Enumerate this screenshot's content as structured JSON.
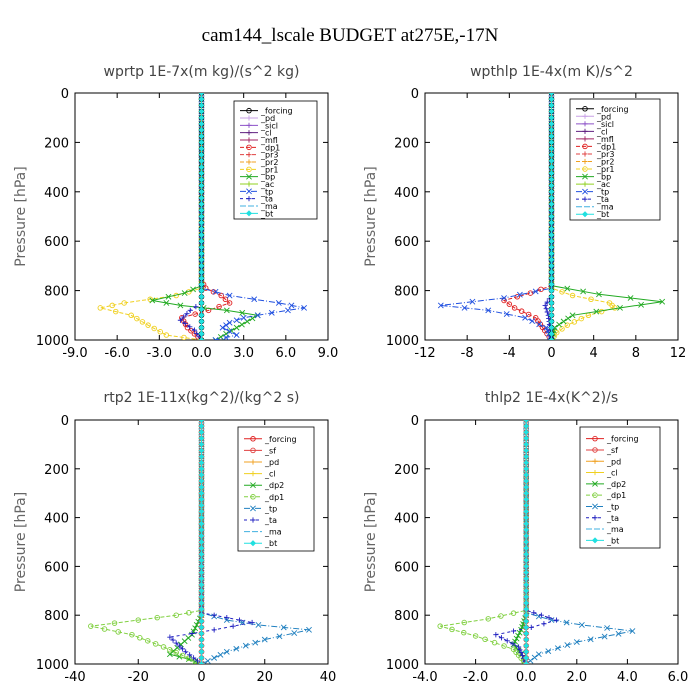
{
  "figure": {
    "title": "cam144_lscale  BUDGET at275E,-17N"
  },
  "chart_data": [
    {
      "type": "line",
      "title": "wprtp  1E-7x(m kg)/(s^2 kg)",
      "ylabel": "Pressure [hPa]",
      "xlabel": "",
      "xlim": [
        -9,
        9
      ],
      "ylim": [
        1000,
        0
      ],
      "xticks": [
        "-9.0",
        "-6.0",
        "-3.0",
        "0.0",
        "3.0",
        "6.0",
        "9.0"
      ],
      "xtick_values": [
        -9,
        -6,
        -3,
        0,
        3,
        6,
        9
      ],
      "yticks": [
        "0",
        "200",
        "400",
        "600",
        "800",
        "1000"
      ],
      "ytick_values": [
        0,
        200,
        400,
        600,
        800,
        1000
      ],
      "legend_position": "top-right",
      "series": [
        {
          "name": "_forcing",
          "color": "#000000",
          "marker": "o",
          "dash": "0",
          "x": [
            0,
            0
          ],
          "y": [
            0,
            1000
          ]
        },
        {
          "name": "_pd",
          "color": "#c8a0e6",
          "marker": "+",
          "dash": "0",
          "x": [
            0,
            0
          ],
          "y": [
            0,
            1000
          ]
        },
        {
          "name": "_sicl",
          "color": "#8c50c8",
          "marker": "+",
          "dash": "0",
          "x": [
            0,
            0
          ],
          "y": [
            0,
            1000
          ]
        },
        {
          "name": "_cl",
          "color": "#602080",
          "marker": "+",
          "dash": "0",
          "x": [
            0,
            0
          ],
          "y": [
            0,
            1000
          ]
        },
        {
          "name": "_mfl",
          "color": "#a02060",
          "marker": "+",
          "dash": "0",
          "x": [
            0,
            0
          ],
          "y": [
            0,
            1000
          ]
        },
        {
          "name": "_dp1",
          "color": "#e02020",
          "marker": "o",
          "dash": "4,2",
          "x": [
            0,
            0,
            0.3,
            1.4,
            2.0,
            0.5,
            -1.4,
            -1.0,
            0
          ],
          "y": [
            0,
            760,
            790,
            820,
            850,
            880,
            910,
            950,
            1000
          ]
        },
        {
          "name": "_pr3",
          "color": "#e04040",
          "marker": "+",
          "dash": "4,2",
          "x": [
            0,
            0
          ],
          "y": [
            0,
            1000
          ]
        },
        {
          "name": "_pr2",
          "color": "#f0a020",
          "marker": "+",
          "dash": "4,2",
          "x": [
            0,
            0
          ],
          "y": [
            0,
            1000
          ]
        },
        {
          "name": "_pr1",
          "color": "#f0d020",
          "marker": "o",
          "dash": "4,2",
          "x": [
            0,
            0,
            -1.8,
            -5.5,
            -7.2,
            -5.0,
            -3.8,
            -2.5,
            0
          ],
          "y": [
            0,
            790,
            820,
            850,
            870,
            900,
            940,
            980,
            1000
          ]
        },
        {
          "name": "_bp",
          "color": "#22aa22",
          "marker": "x",
          "dash": "0",
          "x": [
            0,
            0,
            -1.2,
            -3.5,
            -1.5,
            1.8,
            4.0,
            2.5,
            1.0
          ],
          "y": [
            0,
            780,
            810,
            840,
            860,
            880,
            900,
            950,
            1000
          ]
        },
        {
          "name": "_ac",
          "color": "#90d020",
          "marker": "+",
          "dash": "0",
          "x": [
            0,
            0
          ],
          "y": [
            0,
            1000
          ]
        },
        {
          "name": "_tp",
          "color": "#2050e0",
          "marker": "x",
          "dash": "6,2,1,2",
          "x": [
            0,
            0,
            2.0,
            5.5,
            7.3,
            5.0,
            3.0,
            2.0,
            1.5,
            2.5,
            1.0
          ],
          "y": [
            0,
            790,
            820,
            850,
            870,
            890,
            910,
            930,
            950,
            980,
            1000
          ]
        },
        {
          "name": "_ta",
          "color": "#2020c0",
          "marker": "+",
          "dash": "3,3",
          "x": [
            0,
            0,
            -0.8,
            -1.5,
            -0.5,
            0
          ],
          "y": [
            0,
            850,
            880,
            920,
            960,
            1000
          ]
        },
        {
          "name": "_ma",
          "color": "#40b0e0",
          "marker": "",
          "dash": "6,2",
          "x": [
            0,
            0
          ],
          "y": [
            0,
            1000
          ]
        },
        {
          "name": "_bt",
          "color": "#20e0e0",
          "marker": "diamond",
          "dash": "0",
          "x": [
            0,
            0
          ],
          "y": [
            0,
            1000
          ]
        }
      ]
    },
    {
      "type": "line",
      "title": "wpthlp  1E-4x(m K)/s^2",
      "ylabel": "Pressure [hPa]",
      "xlabel": "",
      "xlim": [
        -12,
        12
      ],
      "ylim": [
        1000,
        0
      ],
      "xticks": [
        "-12",
        "-8",
        "-4",
        "0",
        "4",
        "8",
        "12"
      ],
      "xtick_values": [
        -12,
        -8,
        -4,
        0,
        4,
        8,
        12
      ],
      "yticks": [
        "0",
        "200",
        "400",
        "600",
        "800",
        "1000"
      ],
      "ytick_values": [
        0,
        200,
        400,
        600,
        800,
        1000
      ],
      "legend_position": "top-right",
      "series": [
        {
          "name": "_forcing",
          "color": "#000000",
          "marker": "o",
          "dash": "0",
          "x": [
            0,
            0
          ],
          "y": [
            0,
            1000
          ]
        },
        {
          "name": "_pd",
          "color": "#c8a0e6",
          "marker": "+",
          "dash": "0",
          "x": [
            0,
            0
          ],
          "y": [
            0,
            1000
          ]
        },
        {
          "name": "_sicl",
          "color": "#8c50c8",
          "marker": "+",
          "dash": "0",
          "x": [
            0,
            0
          ],
          "y": [
            0,
            1000
          ]
        },
        {
          "name": "_cl",
          "color": "#602080",
          "marker": "+",
          "dash": "0",
          "x": [
            0,
            0
          ],
          "y": [
            0,
            1000
          ]
        },
        {
          "name": "_mfl",
          "color": "#a02060",
          "marker": "+",
          "dash": "0",
          "x": [
            0,
            0
          ],
          "y": [
            0,
            1000
          ]
        },
        {
          "name": "_dp1",
          "color": "#e02020",
          "marker": "o",
          "dash": "4,2",
          "x": [
            0,
            0,
            -2.0,
            -4.5,
            -3.5,
            -1.5,
            0
          ],
          "y": [
            0,
            780,
            810,
            840,
            870,
            910,
            1000
          ]
        },
        {
          "name": "_pr3",
          "color": "#e04040",
          "marker": "+",
          "dash": "4,2",
          "x": [
            0,
            0
          ],
          "y": [
            0,
            1000
          ]
        },
        {
          "name": "_pr2",
          "color": "#f0a020",
          "marker": "+",
          "dash": "4,2",
          "x": [
            0,
            0
          ],
          "y": [
            0,
            1000
          ]
        },
        {
          "name": "_pr1",
          "color": "#f0d020",
          "marker": "o",
          "dash": "4,2",
          "x": [
            0,
            0,
            2.0,
            5.5,
            6.0,
            3.5,
            1.5,
            0.5,
            0
          ],
          "y": [
            0,
            790,
            820,
            850,
            870,
            900,
            940,
            970,
            1000
          ]
        },
        {
          "name": "_bp",
          "color": "#22aa22",
          "marker": "x",
          "dash": "0",
          "x": [
            0,
            0,
            4.5,
            10.5,
            6.5,
            2.0,
            0.3,
            0
          ],
          "y": [
            0,
            780,
            815,
            845,
            870,
            900,
            950,
            1000
          ]
        },
        {
          "name": "_ac",
          "color": "#90d020",
          "marker": "+",
          "dash": "0",
          "x": [
            0,
            0
          ],
          "y": [
            0,
            1000
          ]
        },
        {
          "name": "_tp",
          "color": "#2050e0",
          "marker": "x",
          "dash": "6,2,1,2",
          "x": [
            0,
            0,
            -4.5,
            -10.5,
            -6.0,
            -2.5,
            -0.5,
            0
          ],
          "y": [
            0,
            790,
            830,
            860,
            880,
            910,
            950,
            1000
          ]
        },
        {
          "name": "_ta",
          "color": "#2020c0",
          "marker": "+",
          "dash": "3,3",
          "x": [
            0,
            0,
            -0.6,
            -0.3,
            0
          ],
          "y": [
            0,
            820,
            860,
            900,
            1000
          ]
        },
        {
          "name": "_ma",
          "color": "#40b0e0",
          "marker": "",
          "dash": "6,2",
          "x": [
            0,
            0
          ],
          "y": [
            0,
            1000
          ]
        },
        {
          "name": "_bt",
          "color": "#20e0e0",
          "marker": "diamond",
          "dash": "0",
          "x": [
            0,
            0
          ],
          "y": [
            0,
            1000
          ]
        }
      ]
    },
    {
      "type": "line",
      "title": "rtp2  1E-11x(kg^2)/(kg^2 s)",
      "ylabel": "Pressure [hPa]",
      "xlabel": "",
      "xlim": [
        -40,
        40
      ],
      "ylim": [
        1000,
        0
      ],
      "xticks": [
        "-40",
        "-20",
        "0",
        "20",
        "40"
      ],
      "xtick_values": [
        -40,
        -20,
        0,
        20,
        40
      ],
      "yticks": [
        "0",
        "200",
        "400",
        "600",
        "800",
        "1000"
      ],
      "ytick_values": [
        0,
        200,
        400,
        600,
        800,
        1000
      ],
      "legend_position": "top-right",
      "series": [
        {
          "name": "_forcing",
          "color": "#e02020",
          "marker": "o",
          "dash": "0",
          "x": [
            0,
            0
          ],
          "y": [
            0,
            1000
          ]
        },
        {
          "name": "_sf",
          "color": "#e04040",
          "marker": "o",
          "dash": "0",
          "x": [
            0,
            0
          ],
          "y": [
            0,
            1000
          ]
        },
        {
          "name": "_pd",
          "color": "#f0a020",
          "marker": "+",
          "dash": "0",
          "x": [
            0,
            0
          ],
          "y": [
            0,
            1000
          ]
        },
        {
          "name": "_cl",
          "color": "#f0d020",
          "marker": "+",
          "dash": "0",
          "x": [
            0,
            0
          ],
          "y": [
            0,
            1000
          ]
        },
        {
          "name": "_dp2",
          "color": "#22aa22",
          "marker": "x",
          "dash": "0",
          "x": [
            0,
            0,
            -3.0,
            -10.0,
            -4.0,
            0
          ],
          "y": [
            0,
            800,
            880,
            960,
            980,
            1000
          ]
        },
        {
          "name": "_dp1",
          "color": "#80d040",
          "marker": "o",
          "dash": "4,2",
          "x": [
            0,
            0,
            -8.0,
            -20.0,
            -35.0,
            -22.0,
            -12.0,
            0
          ],
          "y": [
            0,
            780,
            800,
            820,
            845,
            880,
            930,
            1000
          ]
        },
        {
          "name": "_tp",
          "color": "#2080c0",
          "marker": "x",
          "dash": "6,2,1,2",
          "x": [
            0,
            0,
            8.0,
            18.0,
            34.0,
            20.0,
            8.0,
            0
          ],
          "y": [
            0,
            790,
            820,
            840,
            860,
            900,
            950,
            1000
          ]
        },
        {
          "name": "_ta",
          "color": "#2020c0",
          "marker": "+",
          "dash": "3,3",
          "x": [
            0,
            0,
            8.0,
            16.0,
            4.0,
            -10.0,
            -5.0,
            0
          ],
          "y": [
            0,
            790,
            810,
            830,
            860,
            890,
            950,
            1000
          ]
        },
        {
          "name": "_ma",
          "color": "#40b0e0",
          "marker": "",
          "dash": "6,2",
          "x": [
            0,
            0
          ],
          "y": [
            0,
            1000
          ]
        },
        {
          "name": "_bt",
          "color": "#20e0e0",
          "marker": "diamond",
          "dash": "0",
          "x": [
            0,
            0
          ],
          "y": [
            0,
            1000
          ]
        }
      ]
    },
    {
      "type": "line",
      "title": "thlp2  1E-4x(K^2)/s",
      "ylabel": "Pressure [hPa]",
      "xlabel": "",
      "xlim": [
        -4,
        6
      ],
      "ylim": [
        1000,
        0
      ],
      "xticks": [
        "-4.0",
        "-2.0",
        "0.0",
        "2.0",
        "4.0",
        "6.0"
      ],
      "xtick_values": [
        -4,
        -2,
        0,
        2,
        4,
        6
      ],
      "yticks": [
        "0",
        "200",
        "400",
        "600",
        "800",
        "1000"
      ],
      "ytick_values": [
        0,
        200,
        400,
        600,
        800,
        1000
      ],
      "legend_position": "top-right",
      "series": [
        {
          "name": "_forcing",
          "color": "#e02020",
          "marker": "o",
          "dash": "0",
          "x": [
            0,
            0
          ],
          "y": [
            0,
            1000
          ]
        },
        {
          "name": "_sf",
          "color": "#e04040",
          "marker": "o",
          "dash": "0",
          "x": [
            0,
            0
          ],
          "y": [
            0,
            1000
          ]
        },
        {
          "name": "_pd",
          "color": "#f0a020",
          "marker": "+",
          "dash": "0",
          "x": [
            0,
            0
          ],
          "y": [
            0,
            1000
          ]
        },
        {
          "name": "_cl",
          "color": "#f0d020",
          "marker": "+",
          "dash": "0",
          "x": [
            0,
            0
          ],
          "y": [
            0,
            1000
          ]
        },
        {
          "name": "_dp2",
          "color": "#22aa22",
          "marker": "x",
          "dash": "0",
          "x": [
            0,
            0,
            -0.2,
            -0.5,
            -0.1,
            0
          ],
          "y": [
            0,
            800,
            860,
            920,
            970,
            1000
          ]
        },
        {
          "name": "_dp1",
          "color": "#80d040",
          "marker": "o",
          "dash": "4,2",
          "x": [
            0,
            0,
            -1.5,
            -3.4,
            -2.0,
            -0.5,
            0
          ],
          "y": [
            0,
            780,
            815,
            845,
            885,
            940,
            1000
          ]
        },
        {
          "name": "_tp",
          "color": "#2080c0",
          "marker": "x",
          "dash": "6,2,1,2",
          "x": [
            0,
            0,
            1.0,
            2.2,
            4.2,
            2.0,
            0.5,
            0
          ],
          "y": [
            0,
            790,
            820,
            840,
            865,
            910,
            960,
            1000
          ]
        },
        {
          "name": "_ta",
          "color": "#2020c0",
          "marker": "+",
          "dash": "3,3",
          "x": [
            0,
            0,
            0.6,
            1.2,
            0.2,
            -1.2,
            -0.3,
            0
          ],
          "y": [
            0,
            780,
            800,
            820,
            850,
            880,
            930,
            1000
          ]
        },
        {
          "name": "_ma",
          "color": "#40b0e0",
          "marker": "",
          "dash": "6,2",
          "x": [
            0,
            0
          ],
          "y": [
            0,
            1000
          ]
        },
        {
          "name": "_bt",
          "color": "#20e0e0",
          "marker": "diamond",
          "dash": "0",
          "x": [
            0,
            0
          ],
          "y": [
            0,
            1000
          ]
        }
      ]
    }
  ]
}
